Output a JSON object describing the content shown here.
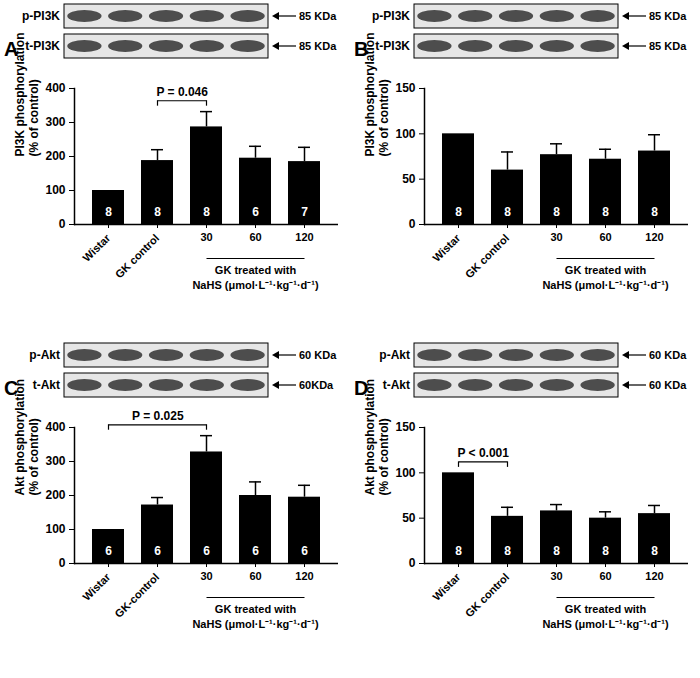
{
  "chart_data": [
    {
      "type": "bar",
      "panel": "A",
      "blot": [
        {
          "label": "p-PI3K",
          "size": "85 KDa"
        },
        {
          "label": "t-PI3K",
          "size": "85 KDa"
        }
      ],
      "categories": [
        "Wistar",
        "GK control",
        "30",
        "60",
        "120"
      ],
      "values": [
        100,
        188,
        287,
        195,
        185
      ],
      "errors": [
        null,
        32,
        45,
        35,
        42
      ],
      "n": [
        8,
        8,
        8,
        6,
        7
      ],
      "color": "#000000",
      "ylim": [
        0,
        400
      ],
      "yticks": [
        0,
        100,
        200,
        300,
        400
      ],
      "y_label": [
        "PI3K phosphorylation",
        "(% of control)"
      ],
      "x_group": {
        "label": [
          "GK treated with",
          "NaHS (μmol·L⁻¹·kg⁻¹·d⁻¹)"
        ],
        "categories": [
          "30",
          "60",
          "120"
        ]
      },
      "annotations": [
        {
          "text": "P = 0.046",
          "from": "GK control",
          "to": "30"
        }
      ]
    },
    {
      "type": "bar",
      "panel": "B",
      "blot": [
        {
          "label": "p-PI3K",
          "size": "85 KDa"
        },
        {
          "label": "t-PI3K",
          "size": "85 KDa"
        }
      ],
      "categories": [
        "Wistar",
        "GK control",
        "30",
        "60",
        "120"
      ],
      "values": [
        100,
        60,
        77,
        72,
        81
      ],
      "errors": [
        null,
        20,
        12,
        11,
        18
      ],
      "n": [
        8,
        8,
        8,
        8,
        8
      ],
      "color": "#000000",
      "ylim": [
        0,
        150
      ],
      "yticks": [
        0,
        50,
        100,
        150
      ],
      "y_label": [
        "PI3K phosphorylation",
        "(% of control)"
      ],
      "x_group": {
        "label": [
          "GK treated with",
          "NaHS (μmol·L⁻¹·kg⁻¹·d⁻¹)"
        ],
        "categories": [
          "30",
          "60",
          "120"
        ]
      },
      "annotations": []
    },
    {
      "type": "bar",
      "panel": "C",
      "blot": [
        {
          "label": "p-Akt",
          "size": "60 KDa"
        },
        {
          "label": "t-Akt",
          "size": "60KDa"
        }
      ],
      "categories": [
        "Wistar",
        "GK-control",
        "30",
        "60",
        "120"
      ],
      "values": [
        100,
        172,
        328,
        200,
        195
      ],
      "errors": [
        null,
        22,
        48,
        40,
        35
      ],
      "n": [
        6,
        6,
        6,
        6,
        6
      ],
      "color": "#000000",
      "ylim": [
        0,
        400
      ],
      "yticks": [
        0,
        100,
        200,
        300,
        400
      ],
      "y_label": [
        "Akt phosphorylation",
        "(% of control)"
      ],
      "x_group": {
        "label": [
          "GK treated with",
          "NaHS (μmol·L⁻¹·kg⁻¹·d⁻¹)"
        ],
        "categories": [
          "30",
          "60",
          "120"
        ]
      },
      "annotations": [
        {
          "text": "P = 0.025",
          "from": "Wistar",
          "to": "30"
        }
      ]
    },
    {
      "type": "bar",
      "panel": "D",
      "blot": [
        {
          "label": "p-Akt",
          "size": "60 KDa"
        },
        {
          "label": "t-Akt",
          "size": "60 KDa"
        }
      ],
      "categories": [
        "Wistar",
        "GK control",
        "30",
        "60",
        "120"
      ],
      "values": [
        100,
        52,
        58,
        50,
        55
      ],
      "errors": [
        null,
        10,
        7,
        7,
        9
      ],
      "n": [
        8,
        8,
        8,
        8,
        8
      ],
      "color": "#000000",
      "ylim": [
        0,
        150
      ],
      "yticks": [
        0,
        50,
        100,
        150
      ],
      "y_label": [
        "Akt phosphorylation",
        "(% of control)"
      ],
      "x_group": {
        "label": [
          "GK treated with",
          "NaHS (μmol·L⁻¹·kg⁻¹·d⁻¹)"
        ],
        "categories": [
          "30",
          "60",
          "120"
        ]
      },
      "annotations": [
        {
          "text": "P < 0.001",
          "from": "Wistar",
          "to": "GK control"
        }
      ]
    }
  ]
}
